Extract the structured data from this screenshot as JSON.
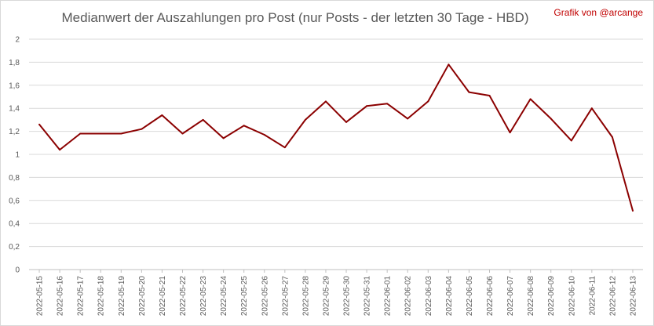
{
  "chart_data": {
    "type": "line",
    "title": "Medianwert der Auszahlungen pro Post (nur Posts - der letzten 30 Tage - HBD)",
    "credit": "Grafik von @arcange",
    "xlabel": "",
    "ylabel": "",
    "ylim": [
      0,
      2
    ],
    "yticks": [
      "0",
      "0,2",
      "0,4",
      "0,6",
      "0,8",
      "1",
      "1,2",
      "1,4",
      "1,6",
      "1,8",
      "2"
    ],
    "grid": true,
    "legend": "none",
    "line_color": "#8b0000",
    "categories": [
      "2022-05-15",
      "2022-05-16",
      "2022-05-17",
      "2022-05-18",
      "2022-05-19",
      "2022-05-20",
      "2022-05-21",
      "2022-05-22",
      "2022-05-23",
      "2022-05-24",
      "2022-05-25",
      "2022-05-26",
      "2022-05-27",
      "2022-05-28",
      "2022-05-29",
      "2022-05-30",
      "2022-05-31",
      "2022-06-01",
      "2022-06-02",
      "2022-06-03",
      "2022-06-04",
      "2022-06-05",
      "2022-06-06",
      "2022-06-07",
      "2022-06-08",
      "2022-06-09",
      "2022-06-10",
      "2022-06-11",
      "2022-06-12",
      "2022-06-13"
    ],
    "series": [
      {
        "values": [
          1.26,
          1.04,
          1.18,
          1.18,
          1.18,
          1.22,
          1.34,
          1.18,
          1.3,
          1.14,
          1.25,
          1.17,
          1.06,
          1.3,
          1.46,
          1.28,
          1.42,
          1.44,
          1.31,
          1.46,
          1.78,
          1.54,
          1.51,
          1.19,
          1.48,
          1.31,
          1.12,
          1.4,
          1.15,
          0.51
        ]
      }
    ]
  }
}
